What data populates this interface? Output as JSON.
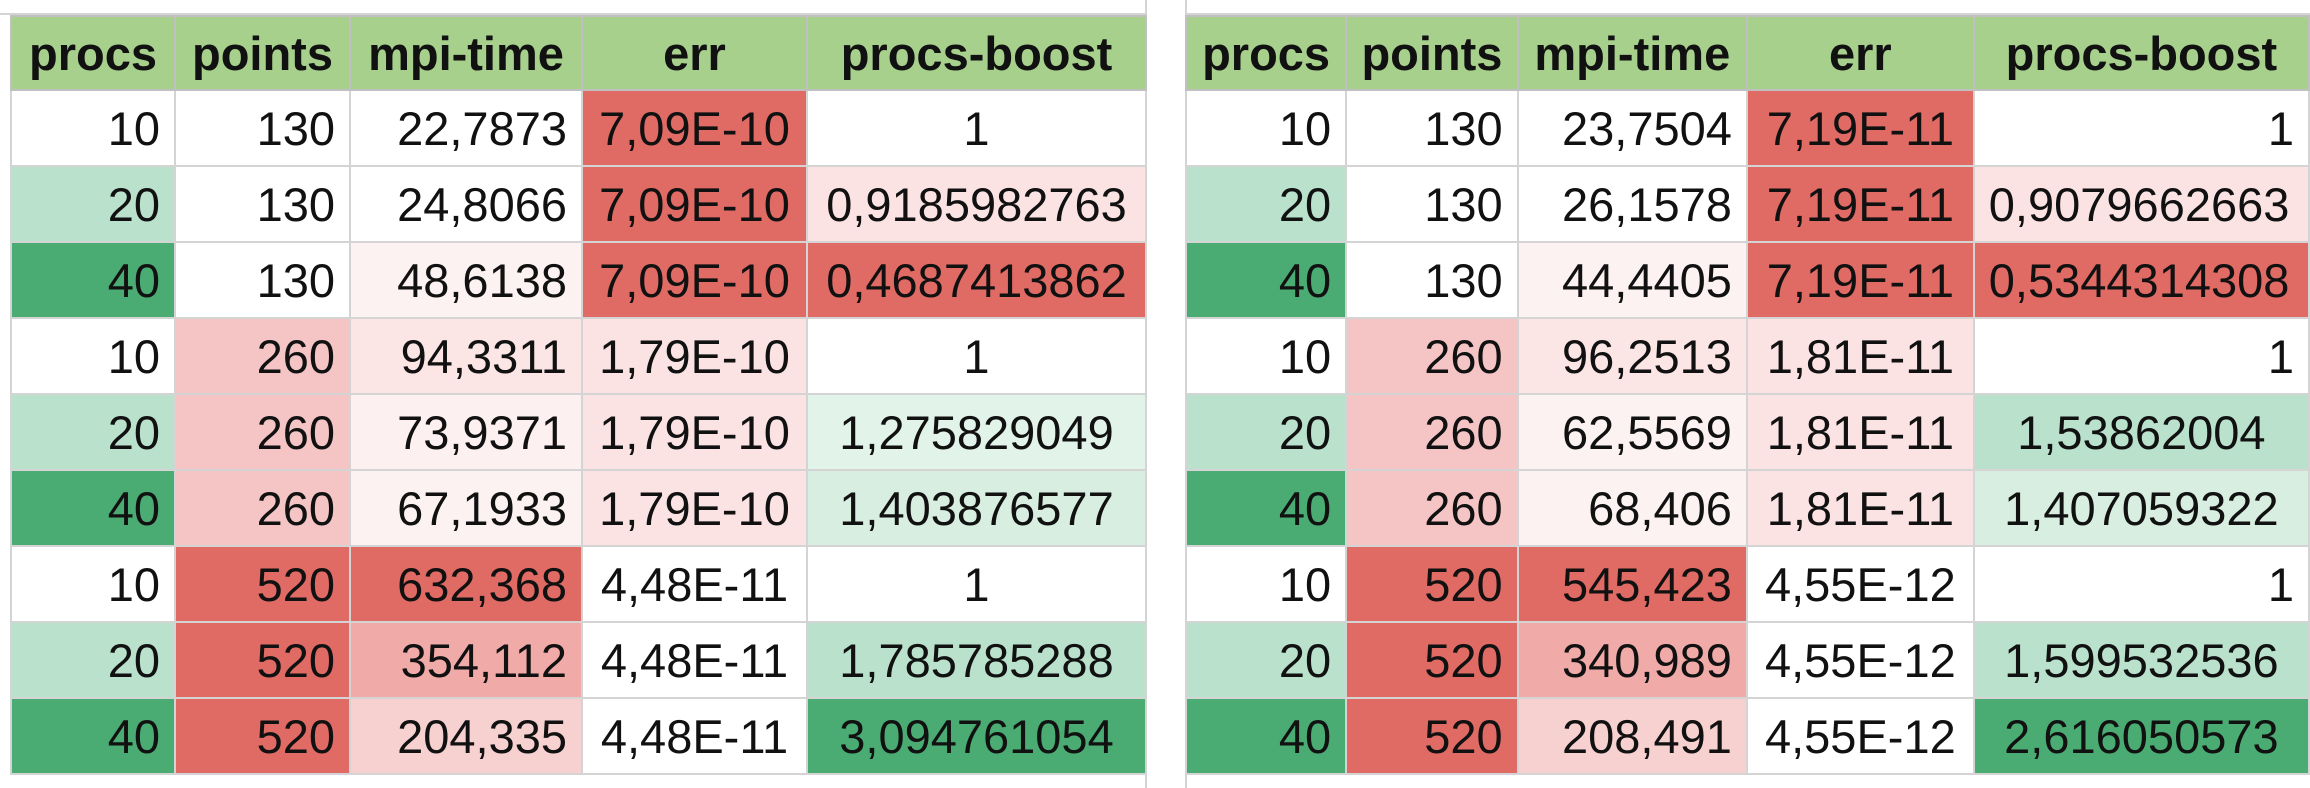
{
  "headers": [
    "procs",
    "points",
    "mpi-time",
    "err",
    "procs-boost"
  ],
  "tables": [
    {
      "rows": [
        [
          "10",
          "130",
          "22,7873",
          "7,09E-10",
          "1"
        ],
        [
          "20",
          "130",
          "24,8066",
          "7,09E-10",
          "0,9185982763"
        ],
        [
          "40",
          "130",
          "48,6138",
          "7,09E-10",
          "0,4687413862"
        ],
        [
          "10",
          "260",
          "94,3311",
          "1,79E-10",
          "1"
        ],
        [
          "20",
          "260",
          "73,9371",
          "1,79E-10",
          "1,275829049"
        ],
        [
          "40",
          "260",
          "67,1933",
          "1,79E-10",
          "1,403876577"
        ],
        [
          "10",
          "520",
          "632,368",
          "4,48E-11",
          "1"
        ],
        [
          "20",
          "520",
          "354,112",
          "4,48E-11",
          "1,785785288"
        ],
        [
          "40",
          "520",
          "204,335",
          "4,48E-11",
          "3,094761054"
        ]
      ],
      "colors": [
        [
          "#ffffff",
          "#ffffff",
          "#ffffff",
          "#e06a64",
          "#ffffff"
        ],
        [
          "#b9e1cb",
          "#ffffff",
          "#ffffff",
          "#e06a64",
          "#fbe3e3"
        ],
        [
          "#4aab73",
          "#ffffff",
          "#fdf2f2",
          "#e06a64",
          "#e06a64"
        ],
        [
          "#ffffff",
          "#f5c5c5",
          "#fbe5e5",
          "#fbe3e3",
          "#ffffff"
        ],
        [
          "#b9e1cb",
          "#f5c5c5",
          "#fdf0f0",
          "#fbe3e3",
          "#e2f3e9"
        ],
        [
          "#4aab73",
          "#f5c5c5",
          "#fdf2f2",
          "#fbe3e3",
          "#d7eee0"
        ],
        [
          "#ffffff",
          "#e06a64",
          "#e06a64",
          "#ffffff",
          "#ffffff"
        ],
        [
          "#b9e1cb",
          "#e06a64",
          "#f0aaa8",
          "#ffffff",
          "#b9e1cb"
        ],
        [
          "#4aab73",
          "#e06a64",
          "#f7d0d0",
          "#ffffff",
          "#4aab73"
        ]
      ]
    },
    {
      "rows": [
        [
          "10",
          "130",
          "23,7504",
          "7,19E-11",
          "1"
        ],
        [
          "20",
          "130",
          "26,1578",
          "7,19E-11",
          "0,9079662663"
        ],
        [
          "40",
          "130",
          "44,4405",
          "7,19E-11",
          "0,5344314308"
        ],
        [
          "10",
          "260",
          "96,2513",
          "1,81E-11",
          "1"
        ],
        [
          "20",
          "260",
          "62,5569",
          "1,81E-11",
          "1,53862004"
        ],
        [
          "40",
          "260",
          "68,406",
          "1,81E-11",
          "1,407059322"
        ],
        [
          "10",
          "520",
          "545,423",
          "4,55E-12",
          "1"
        ],
        [
          "20",
          "520",
          "340,989",
          "4,55E-12",
          "1,599532536"
        ],
        [
          "40",
          "520",
          "208,491",
          "4,55E-12",
          "2,616050573"
        ]
      ],
      "colors": [
        [
          "#ffffff",
          "#ffffff",
          "#ffffff",
          "#e06a64",
          "#ffffff"
        ],
        [
          "#b9e1cb",
          "#ffffff",
          "#ffffff",
          "#e06a64",
          "#fbe3e3"
        ],
        [
          "#4aab73",
          "#ffffff",
          "#fdf2f2",
          "#e06a64",
          "#e06a64"
        ],
        [
          "#ffffff",
          "#f5c5c5",
          "#fbe5e5",
          "#fbe3e3",
          "#ffffff"
        ],
        [
          "#b9e1cb",
          "#f5c5c5",
          "#fdf2f2",
          "#fbe3e3",
          "#b9e1cb"
        ],
        [
          "#4aab73",
          "#f5c5c5",
          "#fdf2f2",
          "#fbe3e3",
          "#d7eee0"
        ],
        [
          "#ffffff",
          "#e06a64",
          "#e06a64",
          "#ffffff",
          "#ffffff"
        ],
        [
          "#b9e1cb",
          "#e06a64",
          "#f0aaa8",
          "#ffffff",
          "#b9e1cb"
        ],
        [
          "#4aab73",
          "#e06a64",
          "#f7d0d0",
          "#ffffff",
          "#4aab73"
        ]
      ]
    }
  ]
}
